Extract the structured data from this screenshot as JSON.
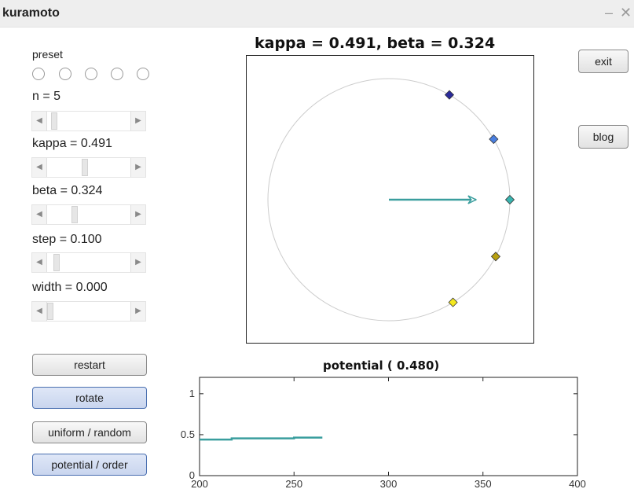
{
  "window": {
    "title": "kuramoto",
    "minimize_glyph": "–",
    "close_glyph": "✕"
  },
  "controls": {
    "preset_label": "preset",
    "preset_options": 5,
    "n_label": "n =   5",
    "kappa_label": "kappa = 0.491",
    "beta_label": "beta = 0.324",
    "step_label": "step = 0.100",
    "width_label": "width = 0.000",
    "sliders": {
      "n": 0.05,
      "kappa": 0.45,
      "beta": 0.32,
      "step": 0.08,
      "width": 0.0
    }
  },
  "buttons": {
    "restart": "restart",
    "rotate": "rotate",
    "uniform_random": "uniform / random",
    "potential_order": "potential / order",
    "exit": "exit",
    "blog": "blog"
  },
  "circle_plot": {
    "title": "kappa = 0.491, beta = 0.324",
    "order_arrow": {
      "magnitude": 0.72,
      "angle_deg": 0,
      "color": "#3a9e9e"
    },
    "oscillators": [
      {
        "angle_deg": 60,
        "color": "#2a2a9a"
      },
      {
        "angle_deg": 30,
        "color": "#4a7fe0"
      },
      {
        "angle_deg": 0,
        "color": "#3ab5b0"
      },
      {
        "angle_deg": -28,
        "color": "#b8a010"
      },
      {
        "angle_deg": -58,
        "color": "#f4e820"
      }
    ],
    "circle_color": "#cccccc"
  },
  "chart_data": {
    "type": "line",
    "title": "potential ( 0.480)",
    "xlim": [
      200,
      400
    ],
    "ylim": [
      0,
      1.2
    ],
    "x_ticks": [
      200,
      250,
      300,
      350,
      400
    ],
    "y_ticks": [
      0,
      0.5,
      1
    ],
    "series": [
      {
        "color": "#3a9e9e",
        "x": [
          200,
          217,
          217,
          250,
          250,
          265
        ],
        "y": [
          0.44,
          0.44,
          0.455,
          0.455,
          0.465,
          0.465
        ]
      }
    ]
  }
}
